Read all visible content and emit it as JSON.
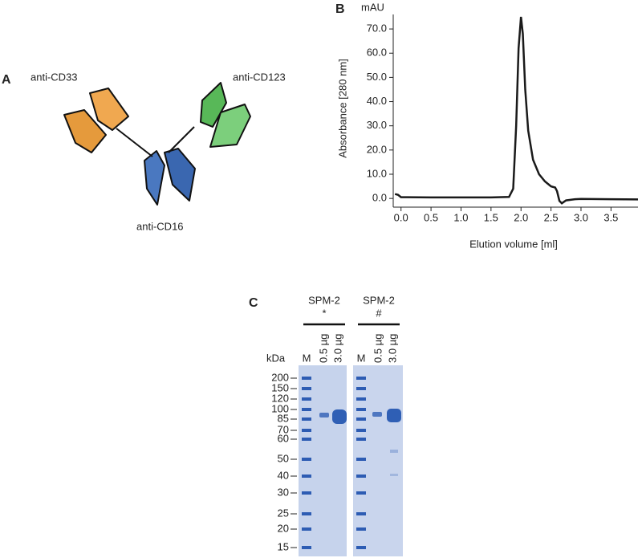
{
  "panel_a": {
    "label": "A",
    "domains": [
      "anti-CD33",
      "anti-CD123",
      "anti-CD16"
    ]
  },
  "chart_data": {
    "type": "line",
    "label": "B",
    "unit": "mAU",
    "xlabel": "Elution volume [ml]",
    "ylabel": "Absorbance [280 nm]",
    "x": [
      -0.1,
      -0.05,
      0.0,
      0.5,
      1.0,
      1.5,
      1.8,
      1.87,
      1.92,
      1.96,
      2.0,
      2.03,
      2.07,
      2.12,
      2.2,
      2.3,
      2.4,
      2.5,
      2.57,
      2.6,
      2.64,
      2.68,
      2.75,
      2.9,
      3.0,
      3.5,
      3.95
    ],
    "series": [
      {
        "name": "SPM-2",
        "color": "#1a1a1a",
        "values": [
          1.8,
          1.5,
          0.5,
          0.4,
          0.4,
          0.4,
          0.6,
          4,
          30,
          62,
          75,
          68,
          45,
          28,
          16,
          10,
          7,
          5,
          4.5,
          3,
          -1,
          -2,
          -0.8,
          -0.3,
          -0.2,
          -0.3,
          -0.4
        ]
      }
    ],
    "xlim": [
      -0.13,
      3.95
    ],
    "ylim": [
      -3.6,
      76
    ],
    "xticks": [
      {
        "value": 0,
        "label": "0.0"
      },
      0.5,
      {
        "value": 1,
        "label": "1.0"
      },
      1.5,
      {
        "value": 2,
        "label": "2.0"
      },
      2.5,
      {
        "value": 3,
        "label": "3.0"
      },
      3.5
    ],
    "yticks": [
      {
        "value": 0,
        "label": "0.0"
      },
      {
        "value": 10,
        "label": "10.0"
      },
      {
        "value": 20,
        "label": "20.0"
      },
      {
        "value": 30,
        "label": "30.0"
      },
      {
        "value": 40,
        "label": "40.0"
      },
      {
        "value": 50,
        "label": "50.0"
      },
      {
        "value": 60,
        "label": "60.0"
      },
      {
        "value": 70,
        "label": "70.0"
      }
    ]
  },
  "gel": {
    "label": "C",
    "unit": "kDa",
    "lanes": [
      "M",
      "0.5 µg",
      "3.0 µg"
    ],
    "groups": [
      {
        "name": "SPM-2",
        "note": "*"
      },
      {
        "name": "SPM-2",
        "note": "#"
      }
    ],
    "markers": [
      200,
      150,
      120,
      100,
      85,
      70,
      60,
      50,
      40,
      30,
      25,
      20,
      15
    ]
  }
}
